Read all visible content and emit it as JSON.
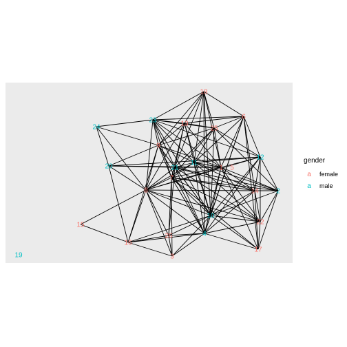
{
  "colors": {
    "female": "#F8766D",
    "male": "#00BFC4",
    "panel": "#EBEBEB",
    "edge": "#000000"
  },
  "legend": {
    "title": "gender",
    "glyph": "a",
    "items": [
      {
        "label": "female",
        "color": "#F8766D"
      },
      {
        "label": "male",
        "color": "#00BFC4"
      }
    ]
  },
  "nodes": [
    {
      "id": "1",
      "gender": "female"
    },
    {
      "id": "2",
      "gender": "male"
    },
    {
      "id": "3",
      "gender": "female"
    },
    {
      "id": "4",
      "gender": "male"
    },
    {
      "id": "5",
      "gender": "female"
    },
    {
      "id": "6",
      "gender": "female"
    },
    {
      "id": "7",
      "gender": "female"
    },
    {
      "id": "8",
      "gender": "female"
    },
    {
      "id": "9",
      "gender": "female"
    },
    {
      "id": "10",
      "gender": "male"
    },
    {
      "id": "11",
      "gender": "male"
    },
    {
      "id": "12",
      "gender": "male"
    },
    {
      "id": "13",
      "gender": "female"
    },
    {
      "id": "14",
      "gender": "female"
    },
    {
      "id": "15",
      "gender": "female"
    },
    {
      "id": "16",
      "gender": "female"
    },
    {
      "id": "17",
      "gender": "female"
    },
    {
      "id": "18",
      "gender": "female"
    },
    {
      "id": "19",
      "gender": "male"
    },
    {
      "id": "20",
      "gender": "male"
    },
    {
      "id": "21",
      "gender": "male"
    },
    {
      "id": "22",
      "gender": "female"
    },
    {
      "id": "23",
      "gender": "male"
    },
    {
      "id": "24",
      "gender": "male"
    },
    {
      "id": "25",
      "gender": "female"
    },
    {
      "id": "26",
      "gender": "female"
    }
  ],
  "edges": [
    [
      "18",
      "23"
    ],
    [
      "18",
      "13"
    ],
    [
      "18",
      "25"
    ],
    [
      "18",
      "10"
    ],
    [
      "18",
      "11"
    ],
    [
      "18",
      "1"
    ],
    [
      "18",
      "9"
    ],
    [
      "18",
      "4"
    ],
    [
      "18",
      "21"
    ],
    [
      "18",
      "6"
    ],
    [
      "6",
      "23"
    ],
    [
      "6",
      "25"
    ],
    [
      "6",
      "12"
    ],
    [
      "6",
      "1"
    ],
    [
      "6",
      "10"
    ],
    [
      "6",
      "11"
    ],
    [
      "6",
      "14"
    ],
    [
      "6",
      "4"
    ],
    [
      "6",
      "13"
    ],
    [
      "6",
      "17"
    ],
    [
      "24",
      "23"
    ],
    [
      "24",
      "20"
    ],
    [
      "24",
      "8"
    ],
    [
      "24",
      "9"
    ],
    [
      "23",
      "13"
    ],
    [
      "23",
      "25"
    ],
    [
      "23",
      "9"
    ],
    [
      "23",
      "8"
    ],
    [
      "23",
      "21"
    ],
    [
      "23",
      "1"
    ],
    [
      "23",
      "11"
    ],
    [
      "23",
      "10"
    ],
    [
      "23",
      "7"
    ],
    [
      "23",
      "12"
    ],
    [
      "13",
      "25"
    ],
    [
      "13",
      "9"
    ],
    [
      "13",
      "21"
    ],
    [
      "13",
      "1"
    ],
    [
      "13",
      "8"
    ],
    [
      "13",
      "11"
    ],
    [
      "13",
      "7"
    ],
    [
      "13",
      "10"
    ],
    [
      "25",
      "9"
    ],
    [
      "25",
      "1"
    ],
    [
      "25",
      "12"
    ],
    [
      "25",
      "11"
    ],
    [
      "25",
      "10"
    ],
    [
      "25",
      "2"
    ],
    [
      "25",
      "7"
    ],
    [
      "25",
      "21"
    ],
    [
      "9",
      "20"
    ],
    [
      "9",
      "21"
    ],
    [
      "9",
      "8"
    ],
    [
      "9",
      "1"
    ],
    [
      "9",
      "7"
    ],
    [
      "9",
      "11"
    ],
    [
      "9",
      "10"
    ],
    [
      "9",
      "4"
    ],
    [
      "9",
      "16"
    ],
    [
      "20",
      "1"
    ],
    [
      "20",
      "8"
    ],
    [
      "20",
      "21"
    ],
    [
      "20",
      "16"
    ],
    [
      "20",
      "12"
    ],
    [
      "21",
      "1"
    ],
    [
      "21",
      "11"
    ],
    [
      "21",
      "8"
    ],
    [
      "21",
      "7"
    ],
    [
      "21",
      "10"
    ],
    [
      "21",
      "4"
    ],
    [
      "21",
      "14"
    ],
    [
      "21",
      "2"
    ],
    [
      "21",
      "26"
    ],
    [
      "21",
      "22"
    ],
    [
      "11",
      "1"
    ],
    [
      "11",
      "12"
    ],
    [
      "11",
      "14"
    ],
    [
      "11",
      "2"
    ],
    [
      "11",
      "10"
    ],
    [
      "11",
      "7"
    ],
    [
      "11",
      "4"
    ],
    [
      "11",
      "8"
    ],
    [
      "11",
      "22"
    ],
    [
      "1",
      "12"
    ],
    [
      "1",
      "14"
    ],
    [
      "1",
      "2"
    ],
    [
      "1",
      "7"
    ],
    [
      "1",
      "10"
    ],
    [
      "1",
      "4"
    ],
    [
      "1",
      "8"
    ],
    [
      "1",
      "22"
    ],
    [
      "1",
      "17"
    ],
    [
      "12",
      "14"
    ],
    [
      "12",
      "2"
    ],
    [
      "12",
      "10"
    ],
    [
      "12",
      "22"
    ],
    [
      "12",
      "4"
    ],
    [
      "12",
      "8"
    ],
    [
      "14",
      "2"
    ],
    [
      "14",
      "7"
    ],
    [
      "14",
      "10"
    ],
    [
      "14",
      "8"
    ],
    [
      "14",
      "22"
    ],
    [
      "14",
      "17"
    ],
    [
      "14",
      "4"
    ],
    [
      "2",
      "22"
    ],
    [
      "2",
      "17"
    ],
    [
      "2",
      "10"
    ],
    [
      "2",
      "7"
    ],
    [
      "8",
      "7"
    ],
    [
      "8",
      "10"
    ],
    [
      "8",
      "26"
    ],
    [
      "8",
      "4"
    ],
    [
      "8",
      "15"
    ],
    [
      "8",
      "16"
    ],
    [
      "8",
      "3"
    ],
    [
      "8",
      "22"
    ],
    [
      "7",
      "10"
    ],
    [
      "7",
      "26"
    ],
    [
      "7",
      "4"
    ],
    [
      "7",
      "22"
    ],
    [
      "7",
      "3"
    ],
    [
      "7",
      "17"
    ],
    [
      "10",
      "4"
    ],
    [
      "10",
      "26"
    ],
    [
      "10",
      "22"
    ],
    [
      "10",
      "17"
    ],
    [
      "10",
      "3"
    ],
    [
      "10",
      "16"
    ],
    [
      "22",
      "4"
    ],
    [
      "22",
      "17"
    ],
    [
      "15",
      "16"
    ],
    [
      "16",
      "26"
    ],
    [
      "16",
      "4"
    ],
    [
      "16",
      "3"
    ],
    [
      "26",
      "4"
    ],
    [
      "26",
      "3"
    ],
    [
      "3",
      "4"
    ],
    [
      "4",
      "17"
    ]
  ]
}
